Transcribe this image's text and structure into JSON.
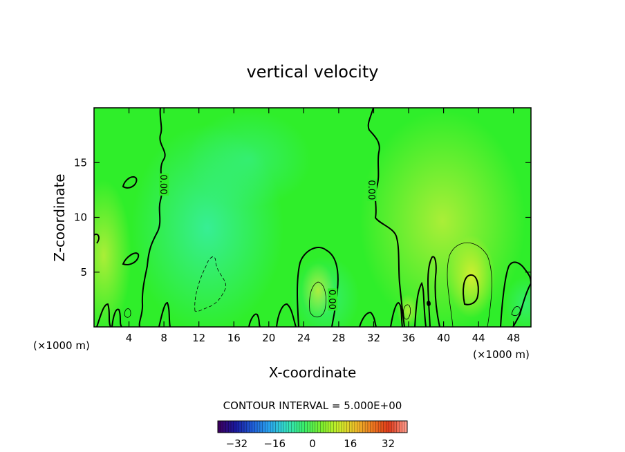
{
  "chart_data": {
    "type": "contour",
    "title": "vertical velocity",
    "xlabel": "X-coordinate",
    "ylabel": "Z-coordinate",
    "x_unit_left": "(×1000 m)",
    "x_unit_right": "(×1000 m)",
    "xlim": [
      0,
      50
    ],
    "ylim": [
      0,
      20
    ],
    "x_ticks": [
      4,
      8,
      12,
      16,
      20,
      24,
      28,
      32,
      36,
      40,
      44,
      48
    ],
    "y_ticks": [
      5,
      10,
      15
    ],
    "contour_interval_text": "CONTOUR INTERVAL = 5.000E+00",
    "contour_labels": [
      {
        "text": "0.00",
        "x": 8.0,
        "y": 13.0
      },
      {
        "text": "0.00",
        "x": 31.8,
        "y": 12.5
      },
      {
        "text": "0.00",
        "x": 27.3,
        "y": 2.5
      }
    ],
    "colorbar": {
      "range": [
        -40,
        40
      ],
      "ticks": [
        -32,
        -16,
        0,
        16,
        32
      ],
      "colors_low_to_high": [
        "#3a0060",
        "#1a1aa0",
        "#1f5fd8",
        "#2aa8f0",
        "#34e0c0",
        "#3aee6a",
        "#7aee2e",
        "#c8ee2a",
        "#eec02a",
        "#ee7a20",
        "#e03a1a",
        "#ff9a8a"
      ]
    },
    "field_colors": {
      "background": "#2fee2a",
      "positive": "#a8ee30",
      "negative": "#3aee8a"
    }
  }
}
